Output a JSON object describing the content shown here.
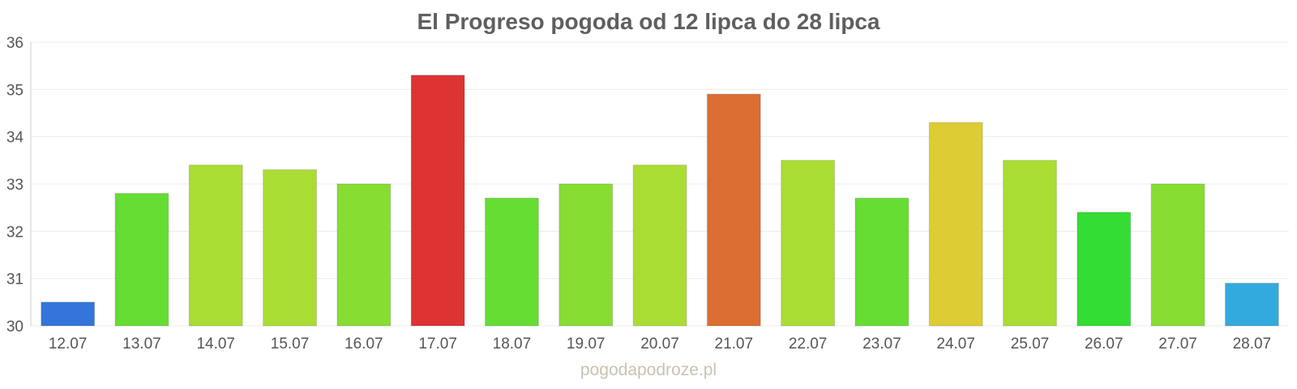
{
  "chart_data": {
    "type": "bar",
    "title": "El Progreso pogoda od 12 lipca do 28 lipca",
    "xlabel": "",
    "ylabel": "",
    "ylim": [
      30,
      36
    ],
    "yticks": [
      30,
      31,
      32,
      33,
      34,
      35,
      36
    ],
    "grid": true,
    "legend": "none",
    "categories": [
      "12.07",
      "13.07",
      "14.07",
      "15.07",
      "16.07",
      "17.07",
      "18.07",
      "19.07",
      "20.07",
      "21.07",
      "22.07",
      "23.07",
      "24.07",
      "25.07",
      "26.07",
      "27.07",
      "28.07"
    ],
    "values": [
      30.5,
      32.8,
      33.4,
      33.3,
      33.0,
      35.3,
      32.7,
      33.0,
      33.4,
      34.9,
      33.5,
      32.7,
      34.3,
      33.5,
      32.4,
      33.0,
      30.9
    ],
    "colors": [
      "#3375db",
      "#66dd33",
      "#aadd33",
      "#aadd33",
      "#88dd33",
      "#dd3333",
      "#66dd33",
      "#88dd33",
      "#aadd33",
      "#dd6e33",
      "#aadd33",
      "#66dd33",
      "#ddcc33",
      "#aadd33",
      "#33dd33",
      "#88dd33",
      "#33aadd"
    ]
  },
  "watermark": "pogodapodroze.pl"
}
